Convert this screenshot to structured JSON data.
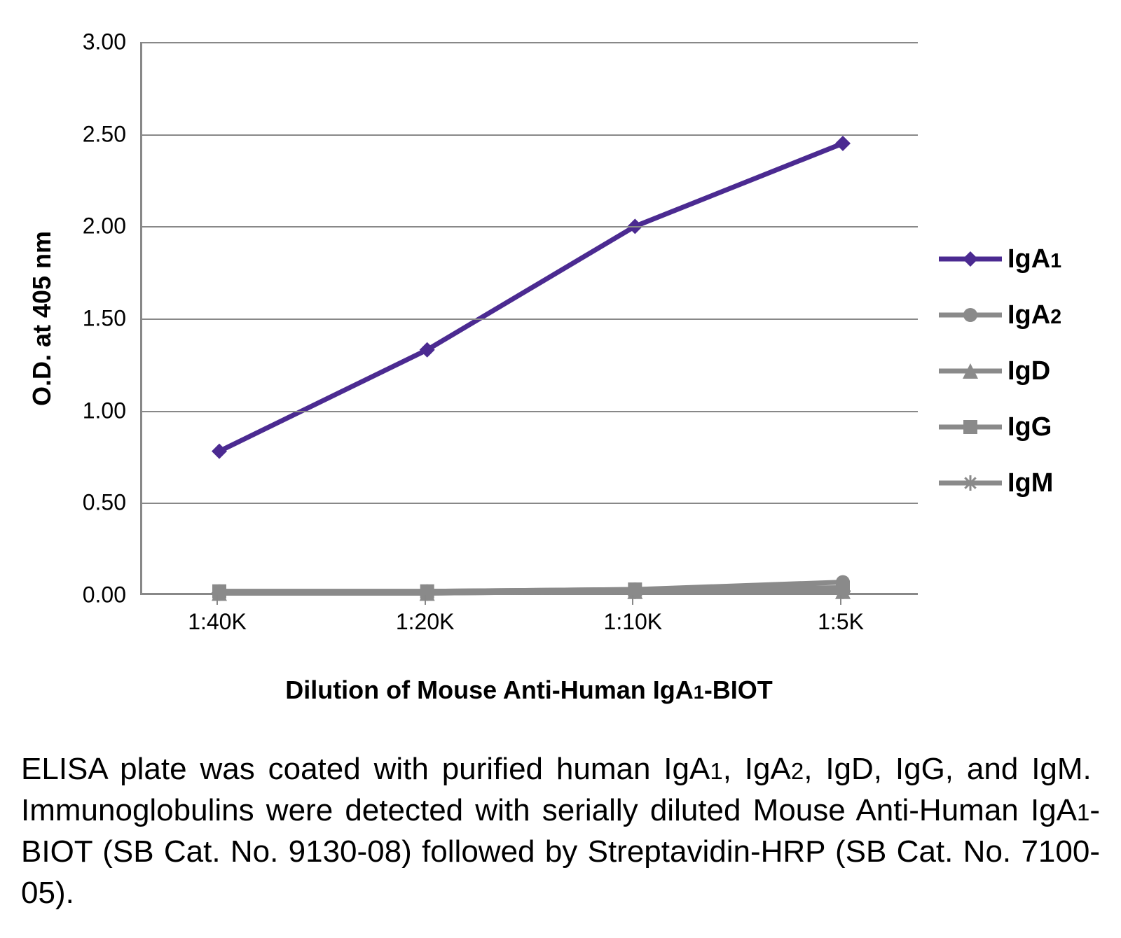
{
  "chart": {
    "type": "line",
    "background_color": "#ffffff",
    "grid_color": "#888888",
    "axis_color": "#888888",
    "y_axis": {
      "title": "O.D. at 405 nm",
      "title_fontsize": 36,
      "title_fontweight": 700,
      "min": 0.0,
      "max": 3.0,
      "tick_step": 0.5,
      "tick_labels": [
        "0.00",
        "0.50",
        "1.00",
        "1.50",
        "2.00",
        "2.50",
        "3.00"
      ],
      "label_fontsize": 32
    },
    "x_axis": {
      "title": "Dilution of Mouse Anti-Human IgA1-BIOT",
      "title_html": "Dilution of Mouse Anti-Human IgA<span class=\"sub\">1</span>-BIOT",
      "title_fontsize": 36,
      "title_fontweight": 700,
      "categories": [
        "1:40K",
        "1:20K",
        "1:10K",
        "1:5K"
      ],
      "label_fontsize": 32
    },
    "series": [
      {
        "name": "IgA1",
        "label_html": "IgA<span class=\"sub\">1</span>",
        "color": "#4b2a91",
        "line_width": 7,
        "marker": "diamond",
        "marker_size": 22,
        "values": [
          0.78,
          1.33,
          2.0,
          2.45
        ]
      },
      {
        "name": "IgA2",
        "label_html": "IgA<span class=\"sub\">2</span>",
        "color": "#8a8a8a",
        "line_width": 7,
        "marker": "circle",
        "marker_size": 20,
        "values": [
          0.02,
          0.02,
          0.03,
          0.07
        ]
      },
      {
        "name": "IgD",
        "label_html": "IgD",
        "color": "#8a8a8a",
        "line_width": 7,
        "marker": "triangle",
        "marker_size": 22,
        "values": [
          0.01,
          0.01,
          0.02,
          0.02
        ]
      },
      {
        "name": "IgG",
        "label_html": "IgG",
        "color": "#8a8a8a",
        "line_width": 7,
        "marker": "square",
        "marker_size": 20,
        "values": [
          0.02,
          0.02,
          0.03,
          0.04
        ]
      },
      {
        "name": "IgM",
        "label_html": "IgM",
        "color": "#8a8a8a",
        "line_width": 7,
        "marker": "asterisk",
        "marker_size": 22,
        "values": [
          0.01,
          0.01,
          0.02,
          0.02
        ]
      }
    ],
    "legend": {
      "fontsize": 38,
      "fontweight": 700,
      "items": [
        "IgA1",
        "IgA2",
        "IgD",
        "IgG",
        "IgM"
      ]
    }
  },
  "caption": {
    "fontsize": 44,
    "text_html": "ELISA plate was coated with purified human IgA<span class=\"sub\">1</span>, IgA<span class=\"sub\">2</span>, IgD, IgG, and IgM.&nbsp; Immunoglobulins were detected with serially diluted Mouse Anti-Human IgA<span class=\"sub\">1</span>-BIOT (SB Cat. No. 9130-08) followed by Streptavidin-HRP (SB Cat. No. 7100-05)."
  }
}
